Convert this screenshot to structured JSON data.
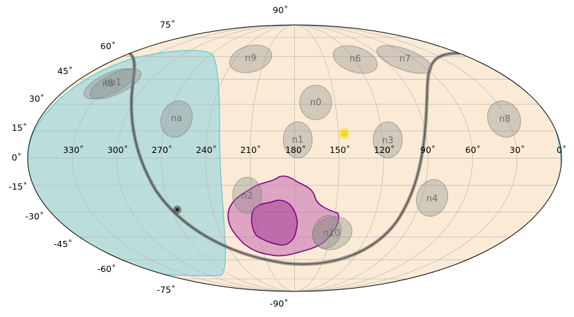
{
  "map": {
    "projection": "Mollweide",
    "background_color": "#fbebd6",
    "lat_labels": [
      {
        "text": "90˚",
        "lat": 90
      },
      {
        "text": "75˚",
        "lat": 75
      },
      {
        "text": "60˚",
        "lat": 60
      },
      {
        "text": "45˚",
        "lat": 45
      },
      {
        "text": "30˚",
        "lat": 30
      },
      {
        "text": "15˚",
        "lat": 15
      },
      {
        "text": "0˚",
        "lat": 0
      },
      {
        "text": "-15˚",
        "lat": -15
      },
      {
        "text": "-30˚",
        "lat": -30
      },
      {
        "text": "-45˚",
        "lat": -45
      },
      {
        "text": "-60˚",
        "lat": -60
      },
      {
        "text": "-75˚",
        "lat": -75
      },
      {
        "text": "-90˚",
        "lat": -90
      }
    ],
    "lon_labels": [
      {
        "text": "330˚",
        "lon": 330
      },
      {
        "text": "300˚",
        "lon": 300
      },
      {
        "text": "270˚",
        "lon": 270
      },
      {
        "text": "240˚",
        "lon": 240
      },
      {
        "text": "210˚",
        "lon": 210
      },
      {
        "text": "180˚",
        "lon": 180
      },
      {
        "text": "150˚",
        "lon": 150
      },
      {
        "text": "120˚",
        "lon": 120
      },
      {
        "text": "90˚",
        "lon": 90
      },
      {
        "text": "60˚",
        "lon": 60
      },
      {
        "text": "30˚",
        "lon": 30
      },
      {
        "text": "0˚",
        "lon": 0
      }
    ],
    "regions": [
      {
        "label": "n0",
        "lon": 155,
        "lat": 33
      },
      {
        "label": "n1",
        "lon": 180,
        "lat": 12
      },
      {
        "label": "n2",
        "lon": 218,
        "lat": -22
      },
      {
        "label": "n3",
        "lon": 122,
        "lat": 12
      },
      {
        "label": "n4",
        "lon": 72,
        "lat": -24
      },
      {
        "label": "n6",
        "lon": 118,
        "lat": 62
      },
      {
        "label": "n7",
        "lon": 90,
        "lat": 62
      },
      {
        "label": "n8",
        "lon": 35,
        "lat": 24
      },
      {
        "label": "n9",
        "lon": 215,
        "lat": 62
      },
      {
        "label": "na",
        "lon": 272,
        "lat": 22
      },
      {
        "label": "nb",
        "lon": 305,
        "lat": 43
      },
      {
        "label": "nb1",
        "lon": 302,
        "lat": 43
      },
      {
        "label": "n10",
        "lon": 138,
        "lat": -42
      }
    ],
    "sun": {
      "lon": 152,
      "lat": 14,
      "color": "#f5e000"
    },
    "galactic_plane_color": "#555555",
    "exclusion_zone_color": "#a6d9de",
    "localization_color": "#800080"
  }
}
